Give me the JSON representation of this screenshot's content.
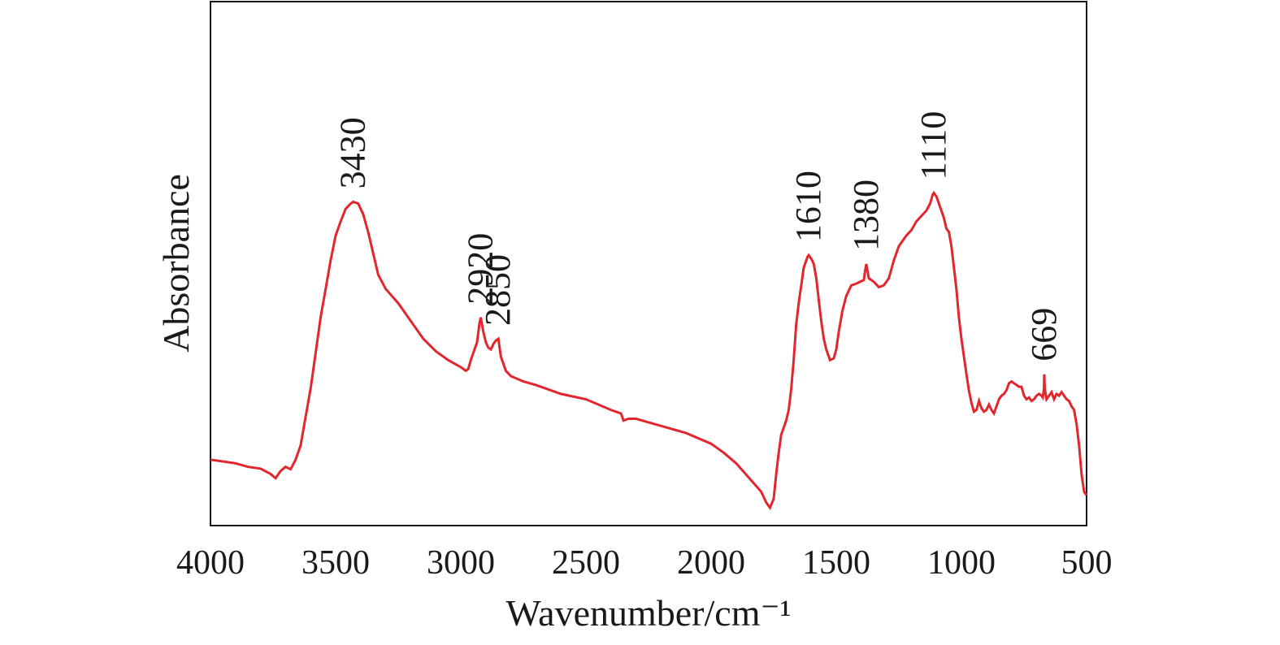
{
  "chart_data": {
    "type": "line",
    "title": "",
    "xlabel": "Wavenumber/cm⁻¹",
    "ylabel": "Absorbance",
    "xlim": [
      4000,
      500
    ],
    "x_reversed": true,
    "ylim": [
      0,
      1
    ],
    "y_ticks_shown": false,
    "grid": false,
    "legend": "none",
    "x_ticks": [
      4000,
      3500,
      3000,
      2500,
      2000,
      1500,
      1000,
      500
    ],
    "line_color": "#e3262d",
    "series": [
      {
        "points": [
          [
            4000,
            0.16
          ],
          [
            3900,
            0.15
          ],
          [
            3850,
            0.14
          ],
          [
            3800,
            0.135
          ],
          [
            3760,
            0.12
          ],
          [
            3740,
            0.108
          ],
          [
            3720,
            0.128
          ],
          [
            3700,
            0.14
          ],
          [
            3680,
            0.133
          ],
          [
            3660,
            0.16
          ],
          [
            3640,
            0.2
          ],
          [
            3620,
            0.28
          ],
          [
            3600,
            0.36
          ],
          [
            3580,
            0.46
          ],
          [
            3560,
            0.56
          ],
          [
            3540,
            0.64
          ],
          [
            3520,
            0.72
          ],
          [
            3500,
            0.79
          ],
          [
            3480,
            0.83
          ],
          [
            3460,
            0.865
          ],
          [
            3440,
            0.88
          ],
          [
            3430,
            0.885
          ],
          [
            3410,
            0.88
          ],
          [
            3390,
            0.85
          ],
          [
            3370,
            0.8
          ],
          [
            3350,
            0.74
          ],
          [
            3330,
            0.68
          ],
          [
            3300,
            0.64
          ],
          [
            3250,
            0.6
          ],
          [
            3200,
            0.55
          ],
          [
            3150,
            0.5
          ],
          [
            3100,
            0.465
          ],
          [
            3050,
            0.44
          ],
          [
            3000,
            0.42
          ],
          [
            2980,
            0.41
          ],
          [
            2970,
            0.415
          ],
          [
            2960,
            0.44
          ],
          [
            2945,
            0.47
          ],
          [
            2935,
            0.49
          ],
          [
            2925,
            0.545
          ],
          [
            2920,
            0.56
          ],
          [
            2910,
            0.52
          ],
          [
            2900,
            0.49
          ],
          [
            2890,
            0.475
          ],
          [
            2880,
            0.47
          ],
          [
            2870,
            0.485
          ],
          [
            2860,
            0.495
          ],
          [
            2850,
            0.5
          ],
          [
            2840,
            0.45
          ],
          [
            2820,
            0.41
          ],
          [
            2800,
            0.395
          ],
          [
            2750,
            0.38
          ],
          [
            2700,
            0.37
          ],
          [
            2600,
            0.345
          ],
          [
            2500,
            0.33
          ],
          [
            2400,
            0.3
          ],
          [
            2360,
            0.29
          ],
          [
            2350,
            0.27
          ],
          [
            2330,
            0.275
          ],
          [
            2300,
            0.275
          ],
          [
            2250,
            0.265
          ],
          [
            2200,
            0.255
          ],
          [
            2100,
            0.235
          ],
          [
            2000,
            0.205
          ],
          [
            1950,
            0.18
          ],
          [
            1900,
            0.15
          ],
          [
            1850,
            0.11
          ],
          [
            1800,
            0.07
          ],
          [
            1780,
            0.04
          ],
          [
            1765,
            0.025
          ],
          [
            1750,
            0.05
          ],
          [
            1740,
            0.12
          ],
          [
            1730,
            0.18
          ],
          [
            1720,
            0.23
          ],
          [
            1700,
            0.27
          ],
          [
            1690,
            0.3
          ],
          [
            1680,
            0.36
          ],
          [
            1670,
            0.44
          ],
          [
            1660,
            0.54
          ],
          [
            1650,
            0.6
          ],
          [
            1640,
            0.65
          ],
          [
            1630,
            0.7
          ],
          [
            1615,
            0.73
          ],
          [
            1610,
            0.735
          ],
          [
            1600,
            0.725
          ],
          [
            1590,
            0.71
          ],
          [
            1580,
            0.67
          ],
          [
            1570,
            0.61
          ],
          [
            1560,
            0.55
          ],
          [
            1550,
            0.5
          ],
          [
            1540,
            0.47
          ],
          [
            1525,
            0.44
          ],
          [
            1510,
            0.445
          ],
          [
            1500,
            0.47
          ],
          [
            1490,
            0.52
          ],
          [
            1475,
            0.58
          ],
          [
            1460,
            0.62
          ],
          [
            1440,
            0.65
          ],
          [
            1420,
            0.655
          ],
          [
            1405,
            0.66
          ],
          [
            1390,
            0.665
          ],
          [
            1385,
            0.69
          ],
          [
            1380,
            0.71
          ],
          [
            1375,
            0.69
          ],
          [
            1370,
            0.67
          ],
          [
            1350,
            0.66
          ],
          [
            1330,
            0.645
          ],
          [
            1310,
            0.65
          ],
          [
            1290,
            0.67
          ],
          [
            1270,
            0.72
          ],
          [
            1250,
            0.76
          ],
          [
            1220,
            0.79
          ],
          [
            1200,
            0.805
          ],
          [
            1180,
            0.83
          ],
          [
            1160,
            0.845
          ],
          [
            1140,
            0.86
          ],
          [
            1125,
            0.88
          ],
          [
            1115,
            0.905
          ],
          [
            1110,
            0.91
          ],
          [
            1100,
            0.9
          ],
          [
            1085,
            0.87
          ],
          [
            1070,
            0.84
          ],
          [
            1060,
            0.81
          ],
          [
            1050,
            0.8
          ],
          [
            1040,
            0.76
          ],
          [
            1030,
            0.7
          ],
          [
            1020,
            0.64
          ],
          [
            1010,
            0.56
          ],
          [
            1000,
            0.5
          ],
          [
            990,
            0.45
          ],
          [
            980,
            0.4
          ],
          [
            970,
            0.355
          ],
          [
            960,
            0.32
          ],
          [
            950,
            0.295
          ],
          [
            940,
            0.3
          ],
          [
            930,
            0.325
          ],
          [
            920,
            0.305
          ],
          [
            910,
            0.295
          ],
          [
            900,
            0.3
          ],
          [
            890,
            0.315
          ],
          [
            880,
            0.3
          ],
          [
            870,
            0.29
          ],
          [
            860,
            0.31
          ],
          [
            850,
            0.33
          ],
          [
            840,
            0.34
          ],
          [
            830,
            0.345
          ],
          [
            820,
            0.355
          ],
          [
            810,
            0.375
          ],
          [
            800,
            0.38
          ],
          [
            790,
            0.375
          ],
          [
            780,
            0.37
          ],
          [
            770,
            0.365
          ],
          [
            760,
            0.365
          ],
          [
            750,
            0.34
          ],
          [
            740,
            0.33
          ],
          [
            730,
            0.335
          ],
          [
            720,
            0.325
          ],
          [
            710,
            0.33
          ],
          [
            700,
            0.34
          ],
          [
            690,
            0.345
          ],
          [
            680,
            0.34
          ],
          [
            675,
            0.335
          ],
          [
            670,
            0.36
          ],
          [
            669,
            0.4
          ],
          [
            667,
            0.36
          ],
          [
            660,
            0.33
          ],
          [
            650,
            0.34
          ],
          [
            640,
            0.35
          ],
          [
            630,
            0.33
          ],
          [
            620,
            0.345
          ],
          [
            610,
            0.34
          ],
          [
            600,
            0.35
          ],
          [
            590,
            0.34
          ],
          [
            580,
            0.33
          ],
          [
            570,
            0.325
          ],
          [
            560,
            0.31
          ],
          [
            550,
            0.3
          ],
          [
            540,
            0.26
          ],
          [
            530,
            0.2
          ],
          [
            520,
            0.12
          ],
          [
            510,
            0.07
          ],
          [
            500,
            0.06
          ]
        ]
      }
    ],
    "annotations": [
      {
        "text": "3430",
        "x": 3430
      },
      {
        "text": "2920",
        "x": 2920
      },
      {
        "text": "2850",
        "x": 2850
      },
      {
        "text": "1610",
        "x": 1610
      },
      {
        "text": "1380",
        "x": 1380
      },
      {
        "text": "1110",
        "x": 1110
      },
      {
        "text": "669",
        "x": 669
      }
    ]
  }
}
